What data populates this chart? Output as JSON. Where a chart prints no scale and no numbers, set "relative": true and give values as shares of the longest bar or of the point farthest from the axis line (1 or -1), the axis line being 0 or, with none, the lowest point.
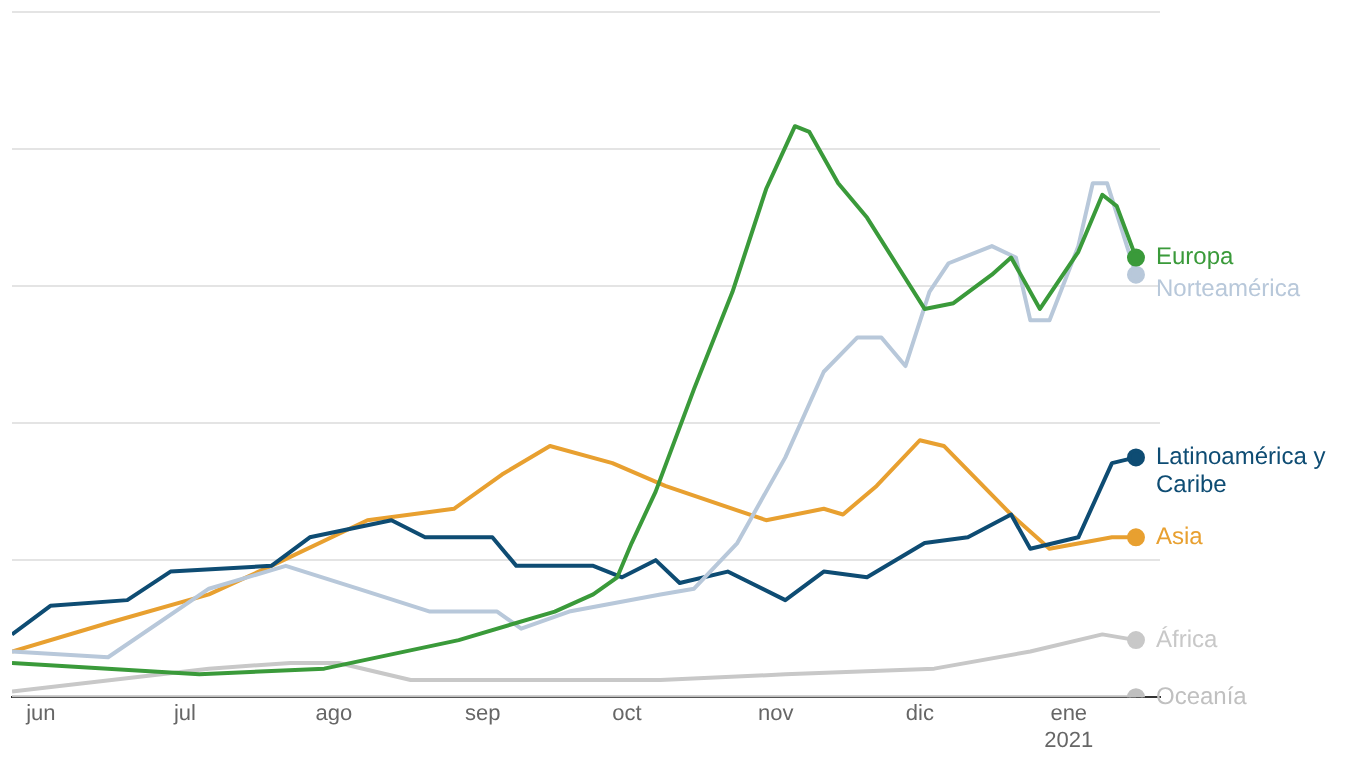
{
  "chart_data": {
    "type": "line",
    "relative": true,
    "legend": false,
    "grid": "y",
    "xlim": [
      "2020-05-26",
      "2021-01-20"
    ],
    "xticks": [
      {
        "value": "2020-06-01",
        "label": "jun"
      },
      {
        "value": "2020-07-01",
        "label": "jul"
      },
      {
        "value": "2020-08-01",
        "label": "ago"
      },
      {
        "value": "2020-09-01",
        "label": "sep"
      },
      {
        "value": "2020-10-01",
        "label": "oct"
      },
      {
        "value": "2020-11-01",
        "label": "nov"
      },
      {
        "value": "2020-12-01",
        "label": "dic"
      },
      {
        "value": "2021-01-01",
        "label": "ene 2021"
      }
    ],
    "series": [
      {
        "name": "Europa",
        "color": "#3a9a3a",
        "x": [
          "2020-05-26",
          "2020-07-04",
          "2020-07-30",
          "2020-08-27",
          "2020-09-16",
          "2020-09-24",
          "2020-09-29",
          "2020-10-02",
          "2020-10-07",
          "2020-10-15",
          "2020-10-23",
          "2020-10-30",
          "2020-11-05",
          "2020-11-08",
          "2020-11-14",
          "2020-11-20",
          "2020-11-26",
          "2020-12-02",
          "2020-12-08",
          "2020-12-16",
          "2020-12-20",
          "2020-12-26",
          "2021-01-03",
          "2021-01-08",
          "2021-01-11",
          "2021-01-15"
        ],
        "values": [
          0.06,
          0.04,
          0.05,
          0.1,
          0.15,
          0.18,
          0.21,
          0.27,
          0.36,
          0.54,
          0.71,
          0.89,
          1.0,
          0.99,
          0.9,
          0.84,
          0.76,
          0.68,
          0.69,
          0.74,
          0.77,
          0.68,
          0.78,
          0.88,
          0.86,
          0.77
        ]
      },
      {
        "name": "Norteamérica",
        "color": "#b8c8da",
        "x": [
          "2020-05-26",
          "2020-06-15",
          "2020-07-06",
          "2020-07-22",
          "2020-08-06",
          "2020-08-21",
          "2020-09-04",
          "2020-09-09",
          "2020-09-19",
          "2020-10-08",
          "2020-10-15",
          "2020-10-24",
          "2020-11-03",
          "2020-11-11",
          "2020-11-18",
          "2020-11-23",
          "2020-11-28",
          "2020-12-03",
          "2020-12-07",
          "2020-12-16",
          "2020-12-21",
          "2020-12-24",
          "2020-12-28",
          "2021-01-03",
          "2021-01-06",
          "2021-01-09",
          "2021-01-15"
        ],
        "values": [
          0.08,
          0.07,
          0.19,
          0.23,
          0.19,
          0.15,
          0.15,
          0.12,
          0.15,
          0.18,
          0.19,
          0.27,
          0.42,
          0.57,
          0.63,
          0.63,
          0.58,
          0.71,
          0.76,
          0.79,
          0.77,
          0.66,
          0.66,
          0.79,
          0.9,
          0.9,
          0.74
        ]
      },
      {
        "name": "Latinoamérica y Caribe",
        "color": "#0e4c73",
        "x": [
          "2020-05-26",
          "2020-06-03",
          "2020-06-19",
          "2020-06-28",
          "2020-07-19",
          "2020-07-27",
          "2020-08-13",
          "2020-08-20",
          "2020-09-03",
          "2020-09-08",
          "2020-09-24",
          "2020-09-30",
          "2020-10-07",
          "2020-10-12",
          "2020-10-22",
          "2020-11-03",
          "2020-11-11",
          "2020-11-20",
          "2020-12-02",
          "2020-12-11",
          "2020-12-20",
          "2020-12-24",
          "2021-01-03",
          "2021-01-10",
          "2021-01-15"
        ],
        "values": [
          0.11,
          0.16,
          0.17,
          0.22,
          0.23,
          0.28,
          0.31,
          0.28,
          0.28,
          0.23,
          0.23,
          0.21,
          0.24,
          0.2,
          0.22,
          0.17,
          0.22,
          0.21,
          0.27,
          0.28,
          0.32,
          0.26,
          0.28,
          0.41,
          0.42
        ]
      },
      {
        "name": "Asia",
        "color": "#e8a030",
        "x": [
          "2020-05-26",
          "2020-06-15",
          "2020-07-06",
          "2020-07-19",
          "2020-08-08",
          "2020-08-26",
          "2020-09-05",
          "2020-09-15",
          "2020-09-28",
          "2020-10-09",
          "2020-10-30",
          "2020-11-11",
          "2020-11-15",
          "2020-11-22",
          "2020-12-01",
          "2020-12-06",
          "2020-12-20",
          "2020-12-28",
          "2021-01-10",
          "2021-01-15"
        ],
        "values": [
          0.08,
          0.13,
          0.18,
          0.23,
          0.31,
          0.33,
          0.39,
          0.44,
          0.41,
          0.37,
          0.31,
          0.33,
          0.32,
          0.37,
          0.45,
          0.44,
          0.32,
          0.26,
          0.28,
          0.28
        ]
      },
      {
        "name": "África",
        "color": "#c8c8c8",
        "x": [
          "2020-05-26",
          "2020-07-06",
          "2020-07-23",
          "2020-08-02",
          "2020-08-17",
          "2020-08-31",
          "2020-10-08",
          "2020-11-03",
          "2020-12-04",
          "2020-12-24",
          "2021-01-08",
          "2021-01-15"
        ],
        "values": [
          0.01,
          0.05,
          0.06,
          0.06,
          0.03,
          0.03,
          0.03,
          0.04,
          0.05,
          0.08,
          0.11,
          0.1
        ]
      },
      {
        "name": "Oceanía",
        "color": "#c0c0c0",
        "x": [
          "2020-05-26",
          "2021-01-15"
        ],
        "values": [
          0,
          0
        ]
      }
    ]
  }
}
